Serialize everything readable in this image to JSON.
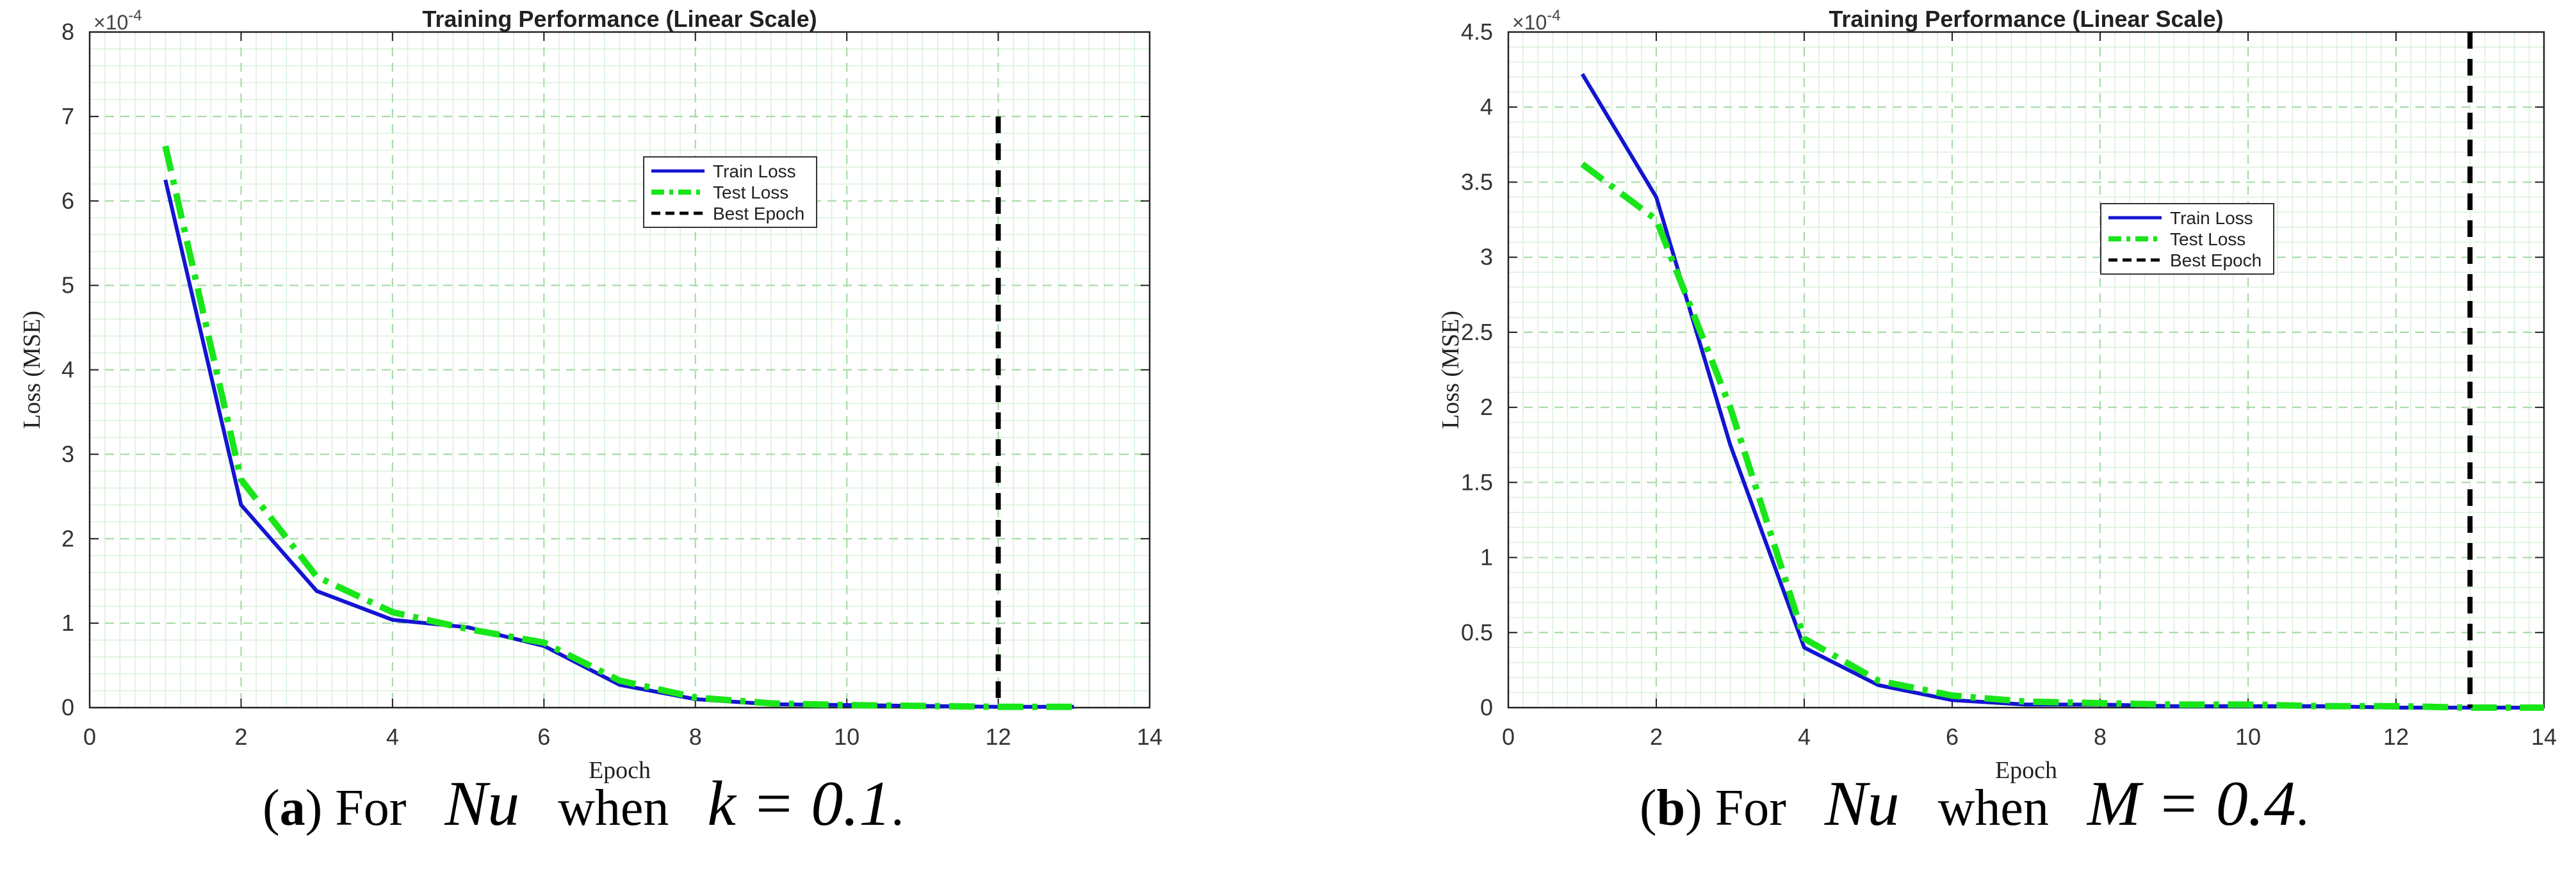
{
  "chart_data": [
    {
      "type": "line",
      "title": "Training Performance (Linear Scale)",
      "xlabel": "Epoch",
      "ylabel": "Loss (MSE)",
      "exponent_label": "×10^-4",
      "exponent_base": "×10",
      "exponent_power": "-4",
      "xlim": [
        0,
        14
      ],
      "ylim": [
        0,
        8
      ],
      "xticks": [
        0,
        2,
        4,
        6,
        8,
        10,
        12,
        14
      ],
      "yticks": [
        0,
        1,
        2,
        3,
        4,
        5,
        6,
        7,
        8
      ],
      "ytick_labels": [
        "0",
        "1",
        "2",
        "3",
        "4",
        "5",
        "6",
        "7",
        "8"
      ],
      "grid": true,
      "legend_position": "top-center",
      "best_epoch": 12,
      "best_epoch_ymax": 7,
      "series": [
        {
          "name": "Train Loss",
          "color": "#1414d2",
          "style": "solid",
          "x": [
            1,
            2,
            3,
            4,
            5,
            6,
            7,
            8,
            9,
            10,
            11,
            12,
            13
          ],
          "values": [
            6.25,
            2.4,
            1.38,
            1.04,
            0.95,
            0.73,
            0.27,
            0.1,
            0.04,
            0.03,
            0.02,
            0.01,
            0.01
          ]
        },
        {
          "name": "Test Loss",
          "color": "#19e619",
          "style": "dashdot",
          "x": [
            1,
            2,
            3,
            4,
            5,
            6,
            7,
            8,
            9,
            10,
            11,
            12,
            13
          ],
          "values": [
            6.65,
            2.7,
            1.55,
            1.13,
            0.93,
            0.77,
            0.32,
            0.12,
            0.05,
            0.03,
            0.02,
            0.01,
            0.01
          ]
        },
        {
          "name": "Best Epoch",
          "color": "#000000",
          "style": "dashed"
        }
      ]
    },
    {
      "type": "line",
      "title": "Training Performance (Linear Scale)",
      "xlabel": "Epoch",
      "ylabel": "Loss (MSE)",
      "exponent_label": "×10^-4",
      "exponent_base": "×10",
      "exponent_power": "-4",
      "xlim": [
        0,
        14
      ],
      "ylim": [
        0,
        4.5
      ],
      "xticks": [
        0,
        2,
        4,
        6,
        8,
        10,
        12,
        14
      ],
      "yticks": [
        0,
        0.5,
        1,
        1.5,
        2,
        2.5,
        3,
        3.5,
        4,
        4.5
      ],
      "ytick_labels": [
        "0",
        "0.5",
        "1",
        "1.5",
        "2",
        "2.5",
        "3",
        "3.5",
        "4",
        "4.5"
      ],
      "grid": true,
      "legend_position": "top-right",
      "best_epoch": 13,
      "best_epoch_ymax": 4.5,
      "series": [
        {
          "name": "Train Loss",
          "color": "#1414d2",
          "style": "solid",
          "x": [
            1,
            2,
            3,
            4,
            5,
            6,
            7,
            8,
            9,
            10,
            11,
            12,
            13,
            14
          ],
          "values": [
            4.22,
            3.4,
            1.75,
            0.4,
            0.15,
            0.05,
            0.02,
            0.02,
            0.01,
            0.01,
            0.01,
            0.0,
            0.0,
            0.0
          ]
        },
        {
          "name": "Test Loss",
          "color": "#19e619",
          "style": "dashdot",
          "x": [
            1,
            2,
            3,
            4,
            5,
            6,
            7,
            8,
            9,
            10,
            11,
            12,
            13,
            14
          ],
          "values": [
            3.62,
            3.25,
            2.0,
            0.46,
            0.18,
            0.08,
            0.04,
            0.03,
            0.02,
            0.02,
            0.01,
            0.01,
            0.0,
            0.0
          ]
        },
        {
          "name": "Best Epoch",
          "color": "#000000",
          "style": "dashed"
        }
      ]
    }
  ],
  "captions": [
    {
      "open": "(",
      "letter": "a",
      "close": ")",
      "for": "For",
      "var": "Nu",
      "when": "when",
      "expr": "k = 0.1",
      "end": "."
    },
    {
      "open": "(",
      "letter": "b",
      "close": ")",
      "for": "For",
      "var": "Nu",
      "when": "when",
      "expr": "M = 0.4",
      "end": "."
    }
  ]
}
